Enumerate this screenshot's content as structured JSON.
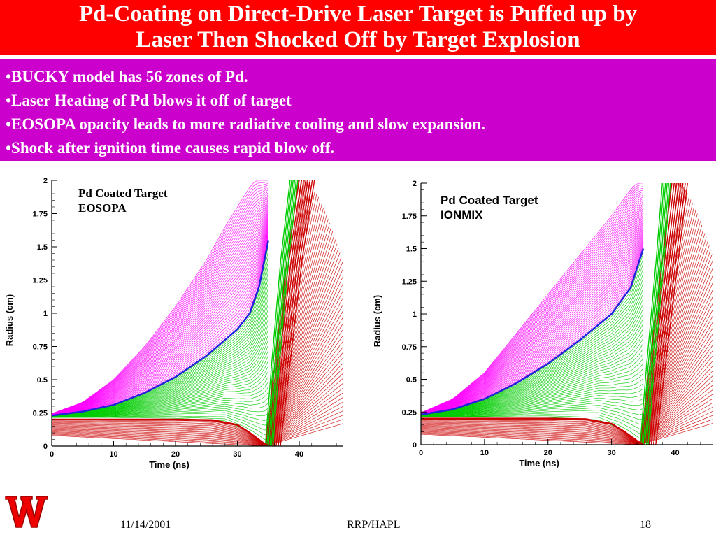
{
  "title": {
    "line1": "Pd-Coating on Direct-Drive Laser Target is Puffed up by",
    "line2": "Laser Then Shocked Off by Target Explosion"
  },
  "bullets": [
    "•BUCKY model has 56 zones of Pd.",
    "•Laser Heating of Pd blows it off of target",
    "•EOSOPA opacity leads to more radiative cooling and slow expansion.",
    "•Shock after ignition time causes rapid blow off."
  ],
  "footer": {
    "date": "11/14/2001",
    "center": "RRP/HAPL",
    "page": "18"
  },
  "logo": {
    "icon": "w-logo-icon"
  },
  "colors": {
    "title_bg": "#ff0000",
    "bullets_bg": "#cc00cc",
    "pd_zone": "#ff00ff",
    "mid_zone": "#00cc00",
    "inner_zone": "#cc0000",
    "interface": "#2222dd"
  },
  "chart_data": [
    {
      "type": "line",
      "annotation": [
        "Pd Coated Target",
        "EOSOPA"
      ],
      "xlabel": "Time (ns)",
      "ylabel": "Radius (cm)",
      "xlim": [
        0,
        47
      ],
      "ylim": [
        0,
        2
      ],
      "xticks": [
        "0",
        "10",
        "20",
        "30",
        "40"
      ],
      "yticks": [
        "0",
        "0.25",
        "0.5",
        "0.75",
        "1",
        "1.25",
        "1.5",
        "1.75",
        "2"
      ],
      "series": [
        {
          "color": "#ff00ff",
          "role": "outer",
          "x": [
            0,
            5,
            10,
            15,
            20,
            25,
            28,
            30,
            32,
            33
          ],
          "y": [
            0.245,
            0.33,
            0.5,
            0.75,
            1.05,
            1.4,
            1.65,
            1.8,
            1.95,
            2.0
          ]
        },
        {
          "color": "#2222dd",
          "role": "interface",
          "x": [
            0,
            5,
            10,
            15,
            20,
            25,
            30,
            32,
            33.5,
            35
          ],
          "y": [
            0.23,
            0.26,
            0.31,
            0.4,
            0.52,
            0.68,
            0.88,
            1.0,
            1.2,
            1.55
          ]
        },
        {
          "color": "#00cc00",
          "role": "inner",
          "x": [
            0,
            10,
            20,
            28,
            31,
            33,
            34.5
          ],
          "y": [
            0.215,
            0.215,
            0.21,
            0.19,
            0.13,
            0.07,
            0.01
          ]
        },
        {
          "color": "#cc0000",
          "role": "core",
          "x": [
            0,
            10,
            20,
            26,
            30,
            32,
            34,
            35
          ],
          "y": [
            0.2,
            0.2,
            0.2,
            0.195,
            0.16,
            0.1,
            0.03,
            0.0
          ]
        },
        {
          "color": "#cc0000",
          "role": "blowoff",
          "x": [
            34.5,
            36,
            38,
            40
          ],
          "y": [
            0.0,
            0.6,
            1.4,
            2.0
          ]
        },
        {
          "color": "#00cc00",
          "role": "blowoff",
          "x": [
            34.5,
            35.5,
            37,
            38.5
          ],
          "y": [
            0.0,
            0.6,
            1.4,
            2.0
          ]
        }
      ]
    },
    {
      "type": "line",
      "annotation": [
        "Pd Coated Target",
        "IONMIX"
      ],
      "xlabel": "Time (ns)",
      "ylabel": "Radius (cm)",
      "xlim": [
        0,
        46
      ],
      "ylim": [
        0,
        2
      ],
      "xticks": [
        "0",
        "10",
        "20",
        "30",
        "40"
      ],
      "yticks": [
        "0",
        "0.25",
        "0.5",
        "0.75",
        "1",
        "1.25",
        "1.5",
        "1.75",
        "2"
      ],
      "series": [
        {
          "color": "#ff00ff",
          "role": "outer",
          "x": [
            0,
            5,
            10,
            15,
            20,
            25,
            30,
            33,
            34
          ],
          "y": [
            0.245,
            0.35,
            0.55,
            0.85,
            1.15,
            1.45,
            1.75,
            1.95,
            2.0
          ]
        },
        {
          "color": "#2222dd",
          "role": "interface",
          "x": [
            0,
            5,
            10,
            15,
            20,
            25,
            30,
            33,
            35
          ],
          "y": [
            0.23,
            0.27,
            0.35,
            0.47,
            0.62,
            0.8,
            1.0,
            1.2,
            1.5
          ]
        },
        {
          "color": "#00cc00",
          "role": "inner",
          "x": [
            0,
            10,
            20,
            28,
            31,
            33,
            34.5
          ],
          "y": [
            0.215,
            0.215,
            0.21,
            0.19,
            0.13,
            0.07,
            0.01
          ]
        },
        {
          "color": "#cc0000",
          "role": "core",
          "x": [
            0,
            10,
            20,
            26,
            30,
            32,
            34,
            35
          ],
          "y": [
            0.2,
            0.2,
            0.2,
            0.195,
            0.16,
            0.1,
            0.03,
            0.0
          ]
        },
        {
          "color": "#cc0000",
          "role": "blowoff",
          "x": [
            34.5,
            36,
            38,
            39.5
          ],
          "y": [
            0.0,
            0.6,
            1.4,
            2.0
          ]
        },
        {
          "color": "#00cc00",
          "role": "blowoff",
          "x": [
            34.5,
            35.5,
            37,
            38
          ],
          "y": [
            0.0,
            0.6,
            1.4,
            2.0
          ]
        }
      ]
    }
  ]
}
